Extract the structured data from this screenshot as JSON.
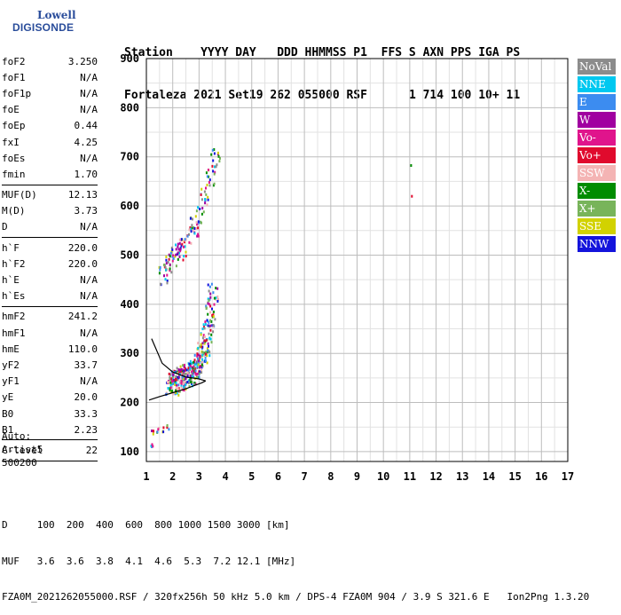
{
  "logo": {
    "line1": "Lowell",
    "line2": "DIGISONDE"
  },
  "header": {
    "row1": [
      "Station",
      "YYYY DAY",
      "DDD HHMMSS P1",
      "FFS S AXN PPS IGA PS"
    ],
    "row2": [
      "Fortaleza",
      "2021 Set19",
      "262 055000 RSF",
      "1 714 100 10+ 11"
    ]
  },
  "params": {
    "group1": [
      {
        "name": "foF2",
        "value": "3.250"
      },
      {
        "name": "foF1",
        "value": "N/A"
      },
      {
        "name": "foF1p",
        "value": "N/A"
      },
      {
        "name": "foE",
        "value": "N/A"
      },
      {
        "name": "foEp",
        "value": "0.44"
      },
      {
        "name": "fxI",
        "value": "4.25"
      },
      {
        "name": "foEs",
        "value": "N/A"
      },
      {
        "name": "fmin",
        "value": "1.70"
      }
    ],
    "group2": [
      {
        "name": "MUF(D)",
        "value": "12.13"
      },
      {
        "name": "M(D)",
        "value": "3.73"
      },
      {
        "name": "D",
        "value": "N/A"
      }
    ],
    "group3": [
      {
        "name": "h`F",
        "value": "220.0"
      },
      {
        "name": "h`F2",
        "value": "220.0"
      },
      {
        "name": "h`E",
        "value": "N/A"
      },
      {
        "name": "h`Es",
        "value": "N/A"
      }
    ],
    "group4": [
      {
        "name": "hmF2",
        "value": "241.2"
      },
      {
        "name": "hmF1",
        "value": "N/A"
      },
      {
        "name": "hmE",
        "value": "110.0"
      },
      {
        "name": "yF2",
        "value": "33.7"
      },
      {
        "name": "yF1",
        "value": "N/A"
      },
      {
        "name": "yE",
        "value": "20.0"
      },
      {
        "name": "B0",
        "value": "33.3"
      },
      {
        "name": "B1",
        "value": "2.23"
      }
    ],
    "clevel": {
      "name": "C-level",
      "value": "22"
    }
  },
  "auto": {
    "line1": "Auto:",
    "line2": "Artist5",
    "line3": "500200"
  },
  "legend": [
    {
      "label": "NoVal",
      "color": "#8c8c8c"
    },
    {
      "label": "NNE",
      "color": "#00c8f0"
    },
    {
      "label": "E",
      "color": "#3c8cf0"
    },
    {
      "label": "W",
      "color": "#a000a0"
    },
    {
      "label": "Vo-",
      "color": "#e0148c"
    },
    {
      "label": "Vo+",
      "color": "#e00a2d"
    },
    {
      "label": "SSW",
      "color": "#f4b4b4"
    },
    {
      "label": "X-",
      "color": "#008c00"
    },
    {
      "label": "X+",
      "color": "#78b45a"
    },
    {
      "label": "SSE",
      "color": "#d2d200"
    },
    {
      "label": "NNW",
      "color": "#1414dc"
    }
  ],
  "footer": {
    "row1": "D     100  200  400  600  800 1000 1500 3000 [km]",
    "row2": "MUF   3.6  3.6  3.8  4.1  4.6  5.3  7.2 12.1 [MHz]",
    "row3": "FZA0M_2021262055000.RSF / 320fx256h 50 kHz 5.0 km / DPS-4 FZA0M 904 / 3.9 S 321.6 E   Ion2Png 1.3.20"
  },
  "chart_data": {
    "type": "scatter",
    "xlim": [
      1,
      17
    ],
    "ylim": [
      80,
      900
    ],
    "x_ticks": [
      1,
      2,
      3,
      4,
      5,
      6,
      7,
      8,
      9,
      10,
      11,
      12,
      13,
      14,
      15,
      16,
      17
    ],
    "y_ticks": [
      100,
      200,
      300,
      400,
      500,
      600,
      700,
      800,
      900
    ],
    "y_tick_labels": [
      "100",
      "200",
      "300",
      "400",
      "500",
      "600",
      "700",
      "800",
      "900"
    ],
    "grid": true,
    "legend_position": "right",
    "clusters": [
      {
        "name": "F-trace",
        "points": [
          [
            1.9,
            240
          ],
          [
            2.0,
            238
          ],
          [
            2.1,
            245
          ],
          [
            2.2,
            250
          ],
          [
            2.3,
            248
          ],
          [
            2.4,
            252
          ],
          [
            2.5,
            255
          ],
          [
            2.6,
            260
          ],
          [
            2.7,
            262
          ],
          [
            2.8,
            268
          ],
          [
            2.9,
            275
          ],
          [
            3.0,
            285
          ],
          [
            3.1,
            300
          ],
          [
            3.2,
            320
          ],
          [
            3.3,
            345
          ],
          [
            3.4,
            380
          ],
          [
            3.5,
            420
          ]
        ]
      },
      {
        "name": "upper-trace",
        "points": [
          [
            1.6,
            460
          ],
          [
            1.8,
            480
          ],
          [
            2.0,
            500
          ],
          [
            2.2,
            510
          ],
          [
            2.4,
            520
          ],
          [
            2.6,
            540
          ],
          [
            2.8,
            560
          ],
          [
            3.0,
            580
          ],
          [
            3.2,
            620
          ],
          [
            3.4,
            660
          ],
          [
            3.6,
            700
          ]
        ]
      },
      {
        "name": "Es-trace",
        "points": [
          [
            1.2,
            140
          ],
          [
            1.4,
            145
          ],
          [
            1.6,
            148
          ],
          [
            1.8,
            150
          ],
          [
            1.2,
            115
          ]
        ]
      },
      {
        "name": "isolated",
        "points": [
          [
            11.0,
            680
          ],
          [
            11.0,
            620
          ]
        ]
      }
    ],
    "model_curves": [
      {
        "name": "profile-lower",
        "points": [
          [
            1.1,
            205
          ],
          [
            1.5,
            212
          ],
          [
            2.0,
            220
          ],
          [
            2.5,
            228
          ],
          [
            2.8,
            234
          ],
          [
            3.1,
            240
          ],
          [
            3.25,
            244
          ]
        ]
      },
      {
        "name": "profile-upper",
        "points": [
          [
            1.2,
            330
          ],
          [
            1.6,
            280
          ],
          [
            2.0,
            262
          ],
          [
            2.5,
            252
          ],
          [
            3.0,
            248
          ],
          [
            3.25,
            244
          ]
        ]
      }
    ]
  }
}
